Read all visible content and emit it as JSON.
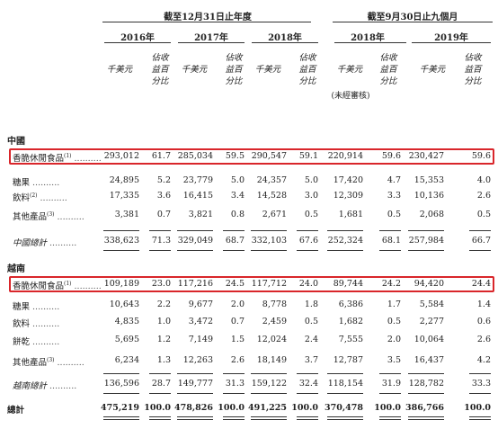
{
  "header": {
    "period_full_year": "截至12月31日止年度",
    "period_nine_months": "截至9月30日止九個月",
    "years": [
      "2016年",
      "2017年",
      "2018年",
      "2018年",
      "2019年"
    ],
    "unit_amount": "千美元",
    "unit_pct": "佔收益百分比",
    "unaudited_note": "(未經審核)"
  },
  "sections": [
    {
      "title": "中國",
      "rows": [
        {
          "label": "香脆休閒食品",
          "sup": "(1)",
          "style": "normal",
          "values": [
            "293,012",
            "61.7",
            "285,034",
            "59.5",
            "290,547",
            "59.1",
            "220,914",
            "59.6",
            "230,427",
            "59.6"
          ]
        },
        {
          "label": "糖果",
          "sup": "",
          "style": "normal",
          "values": [
            "24,895",
            "5.2",
            "23,779",
            "5.0",
            "24,357",
            "5.0",
            "17,420",
            "4.7",
            "15,353",
            "4.0"
          ]
        },
        {
          "label": "飲料",
          "sup": "(2)",
          "style": "normal",
          "values": [
            "17,335",
            "3.6",
            "16,415",
            "3.4",
            "14,528",
            "3.0",
            "12,309",
            "3.3",
            "10,136",
            "2.6"
          ]
        },
        {
          "label": "其他產品",
          "sup": "(3)",
          "style": "normal",
          "values": [
            "3,381",
            "0.7",
            "3,821",
            "0.8",
            "2,671",
            "0.5",
            "1,681",
            "0.5",
            "2,068",
            "0.5"
          ]
        },
        {
          "label": "中國總計",
          "sup": "",
          "style": "subtotal",
          "values": [
            "338,623",
            "71.3",
            "329,049",
            "68.7",
            "332,103",
            "67.6",
            "252,324",
            "68.1",
            "257,984",
            "66.7"
          ]
        }
      ]
    },
    {
      "title": "越南",
      "rows": [
        {
          "label": "香脆休閒食品",
          "sup": "(1)",
          "style": "normal",
          "values": [
            "109,189",
            "23.0",
            "117,216",
            "24.5",
            "117,712",
            "24.0",
            "89,744",
            "24.2",
            "94,420",
            "24.4"
          ]
        },
        {
          "label": "糖果",
          "sup": "",
          "style": "normal",
          "values": [
            "10,643",
            "2.2",
            "9,677",
            "2.0",
            "8,778",
            "1.8",
            "6,386",
            "1.7",
            "5,584",
            "1.4"
          ]
        },
        {
          "label": "飲料",
          "sup": "",
          "style": "normal",
          "values": [
            "4,835",
            "1.0",
            "3,472",
            "0.7",
            "2,459",
            "0.5",
            "1,682",
            "0.5",
            "2,277",
            "0.6"
          ]
        },
        {
          "label": "餅乾",
          "sup": "",
          "style": "normal",
          "values": [
            "5,695",
            "1.2",
            "7,149",
            "1.5",
            "12,024",
            "2.4",
            "7,555",
            "2.0",
            "10,064",
            "2.6"
          ]
        },
        {
          "label": "其他產品",
          "sup": "(3)",
          "style": "normal",
          "values": [
            "6,234",
            "1.3",
            "12,263",
            "2.6",
            "18,149",
            "3.7",
            "12,787",
            "3.5",
            "16,437",
            "4.2"
          ]
        },
        {
          "label": "越南總計",
          "sup": "",
          "style": "subtotal",
          "values": [
            "136,596",
            "28.7",
            "149,777",
            "31.3",
            "159,122",
            "32.4",
            "118,154",
            "31.9",
            "128,782",
            "33.3"
          ]
        }
      ]
    }
  ],
  "total": {
    "label": "總計",
    "values": [
      "475,219",
      "100.0",
      "478,826",
      "100.0",
      "491,225",
      "100.0",
      "370,478",
      "100.0",
      "386,766",
      "100.0"
    ]
  },
  "colors": {
    "highlight_border": "#d9262b"
  }
}
